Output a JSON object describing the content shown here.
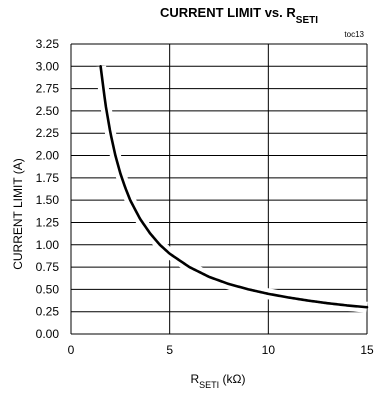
{
  "chart_data": {
    "type": "line",
    "title_main": "CURRENT LIMIT vs. R",
    "title_sub": "SETI",
    "figure_code": "toc13",
    "ylabel": "CURRENT LIMIT (A)",
    "xlabel_main": "R",
    "xlabel_sub": "SETI",
    "xlabel_unit": " (kΩ)",
    "xlim": [
      0,
      15
    ],
    "ylim": [
      0,
      3.25
    ],
    "grid": true,
    "x_ticks": [
      "0",
      "5",
      "10",
      "15"
    ],
    "y_ticks": [
      "0.00",
      "0.25",
      "0.50",
      "0.75",
      "1.00",
      "1.25",
      "1.50",
      "1.75",
      "2.00",
      "2.25",
      "2.50",
      "2.75",
      "3.00",
      "3.25"
    ],
    "series": [
      {
        "x": [
          1.5,
          1.75,
          2.0,
          2.25,
          2.5,
          2.75,
          3.0,
          3.5,
          4.0,
          4.5,
          5.0,
          6.0,
          7.0,
          8.0,
          9.0,
          10.0,
          11.0,
          12.0,
          13.0,
          14.0,
          15.0
        ],
        "y": [
          3.0,
          2.57,
          2.25,
          2.0,
          1.8,
          1.64,
          1.5,
          1.29,
          1.13,
          1.0,
          0.9,
          0.75,
          0.64,
          0.56,
          0.5,
          0.45,
          0.41,
          0.375,
          0.345,
          0.32,
          0.3
        ]
      }
    ]
  }
}
